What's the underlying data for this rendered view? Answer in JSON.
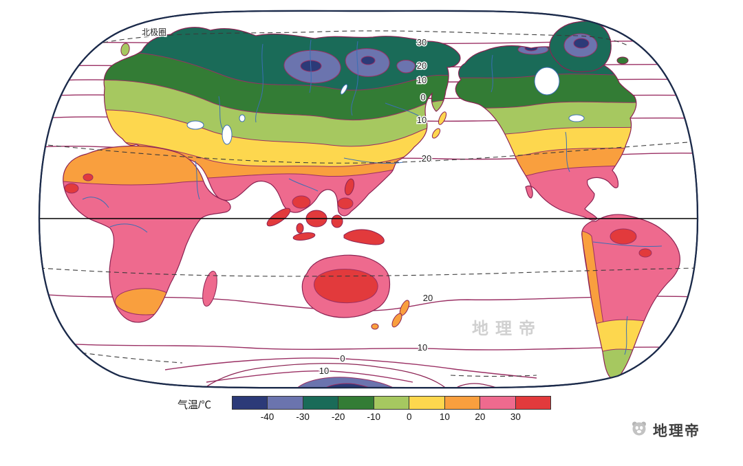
{
  "map": {
    "arctic_circle_label": "北极圈",
    "watermark": "地理帝",
    "isotherm_labels": {
      "n0": "30",
      "n1": "20",
      "n2": "10",
      "n3": "0",
      "n4": "10",
      "n5": "20",
      "s0": "20",
      "s1": "10",
      "s2": "0",
      "s3": "10"
    }
  },
  "legend": {
    "title": "气温/℃",
    "ticks": [
      "-40",
      "-30",
      "-20",
      "-10",
      "0",
      "10",
      "20",
      "30"
    ],
    "colors": [
      "#2c3a78",
      "#6b74ae",
      "#1a6b58",
      "#337c35",
      "#a6c860",
      "#fdd74e",
      "#f99f3e",
      "#ee6a8e",
      "#e23a3c"
    ]
  },
  "palette": {
    "navy": "#2c3a78",
    "slate": "#6b74ae",
    "teal": "#1a6b58",
    "green": "#337c35",
    "yellowgreen": "#a6c860",
    "yellow": "#fdd74e",
    "orange": "#f99f3e",
    "pink": "#ee6a8e",
    "red": "#e23a3c",
    "isotherm": "#9a2f63",
    "coastline": "#8b2252",
    "river": "#3a6fb5",
    "frame": "#1b2a4a"
  },
  "brand": {
    "name": "地理帝"
  }
}
